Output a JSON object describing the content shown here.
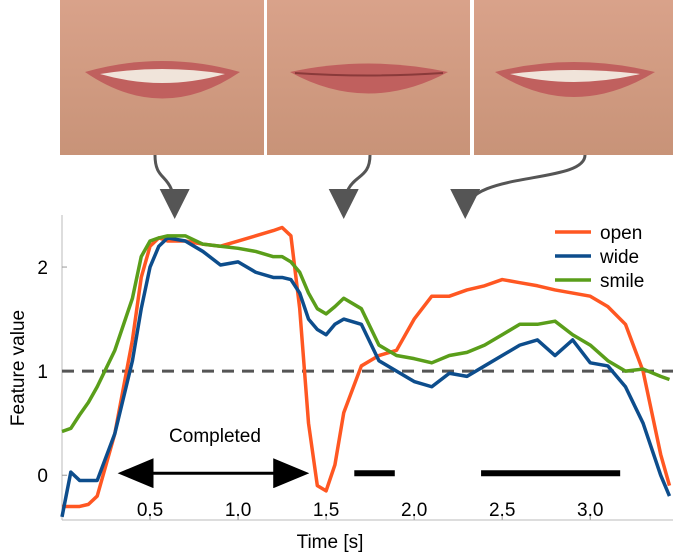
{
  "chart_data": {
    "type": "line",
    "xlabel": "Time [s]",
    "ylabel": "Feature value",
    "x": [
      0,
      0.05,
      0.1,
      0.15,
      0.2,
      0.3,
      0.4,
      0.45,
      0.5,
      0.55,
      0.6,
      0.7,
      0.8,
      0.9,
      1.0,
      1.1,
      1.2,
      1.25,
      1.3,
      1.35,
      1.4,
      1.45,
      1.5,
      1.55,
      1.6,
      1.7,
      1.8,
      1.9,
      2.0,
      2.1,
      2.2,
      2.3,
      2.4,
      2.5,
      2.6,
      2.7,
      2.8,
      2.9,
      3.0,
      3.1,
      3.2,
      3.3,
      3.4,
      3.45
    ],
    "series": [
      {
        "name": "open",
        "color": "#ff5722",
        "values": [
          -0.3,
          -0.3,
          -0.3,
          -0.28,
          -0.2,
          0.4,
          1.3,
          1.9,
          2.2,
          2.28,
          2.25,
          2.25,
          2.22,
          2.2,
          2.25,
          2.3,
          2.35,
          2.38,
          2.3,
          1.6,
          0.5,
          -0.1,
          -0.15,
          0.1,
          0.6,
          1.05,
          1.15,
          1.2,
          1.5,
          1.72,
          1.72,
          1.78,
          1.82,
          1.88,
          1.85,
          1.82,
          1.78,
          1.75,
          1.72,
          1.62,
          1.45,
          1.0,
          0.2,
          -0.1
        ]
      },
      {
        "name": "wide",
        "color": "#0d4d8c",
        "values": [
          -0.4,
          0.03,
          -0.05,
          -0.05,
          -0.05,
          0.4,
          1.1,
          1.6,
          2.0,
          2.2,
          2.28,
          2.25,
          2.15,
          2.02,
          2.05,
          1.95,
          1.9,
          1.9,
          1.88,
          1.75,
          1.5,
          1.4,
          1.35,
          1.45,
          1.5,
          1.45,
          1.1,
          1.0,
          0.9,
          0.85,
          0.98,
          0.95,
          1.05,
          1.15,
          1.25,
          1.3,
          1.15,
          1.3,
          1.08,
          1.05,
          0.85,
          0.5,
          0.0,
          -0.2
        ]
      },
      {
        "name": "smile",
        "color": "#5a9e1a",
        "values": [
          0.42,
          0.45,
          0.58,
          0.7,
          0.85,
          1.2,
          1.7,
          2.1,
          2.25,
          2.28,
          2.3,
          2.3,
          2.22,
          2.2,
          2.18,
          2.15,
          2.1,
          2.1,
          2.05,
          1.95,
          1.75,
          1.6,
          1.55,
          1.62,
          1.7,
          1.6,
          1.25,
          1.15,
          1.12,
          1.08,
          1.15,
          1.18,
          1.25,
          1.35,
          1.45,
          1.45,
          1.48,
          1.35,
          1.25,
          1.1,
          1.0,
          1.02,
          0.95,
          0.92
        ]
      }
    ],
    "xlim": [
      0,
      3.47
    ],
    "ylim": [
      -0.43,
      2.5
    ],
    "xticks": [
      0.5,
      {
        "value": 1,
        "label": "1.0"
      },
      1.5,
      {
        "value": 2,
        "label": "2.0"
      },
      2.5,
      {
        "value": 3,
        "label": "3.0"
      }
    ],
    "yticks": [
      0,
      1,
      2
    ],
    "hline": 1,
    "intervals": [
      [
        0.35,
        1.37
      ],
      [
        1.66,
        1.89
      ],
      [
        2.38,
        3.17
      ]
    ],
    "annotation": "Completed",
    "image_times": [
      0.64,
      1.6,
      2.29
    ],
    "legend": "upper right"
  }
}
